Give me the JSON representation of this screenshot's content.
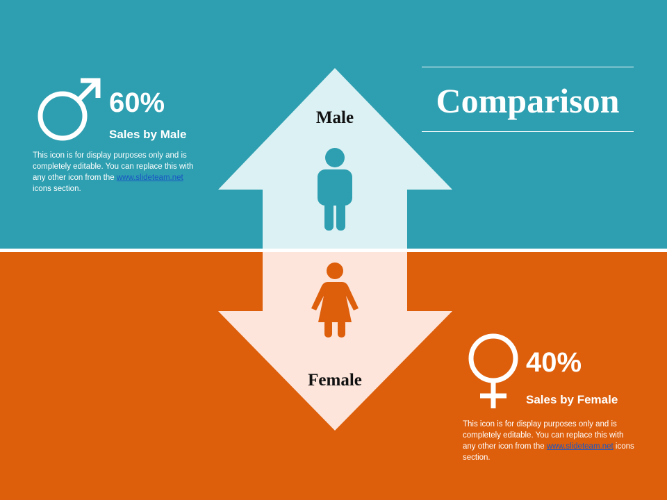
{
  "title": "Comparison",
  "colors": {
    "top_bg": "#2e9fb0",
    "bottom_bg": "#dd5f0c",
    "male_arrow": "#dcf1f4",
    "female_arrow": "#fde5db",
    "male_figure": "#2e9fb0",
    "female_figure": "#dd5f0c"
  },
  "male": {
    "arrow_label": "Male",
    "percent": "60%",
    "subtitle": "Sales by Male",
    "desc_before": "This icon is for display purposes only and is completely editable. You can replace this with any other icon from the",
    "link": "www.slideteam.net",
    "desc_after": "icons section.",
    "symbol_icon": "male-symbol-icon",
    "figure_icon": "man-figure-icon"
  },
  "female": {
    "arrow_label": "Female",
    "percent": "40%",
    "subtitle": "Sales by Female",
    "desc_before": "This icon is for display purposes only and is completely editable. You can replace this with any other icon from the",
    "link": "www.slideteam.net",
    "desc_after": "icons section.",
    "symbol_icon": "female-symbol-icon",
    "figure_icon": "woman-figure-icon"
  }
}
